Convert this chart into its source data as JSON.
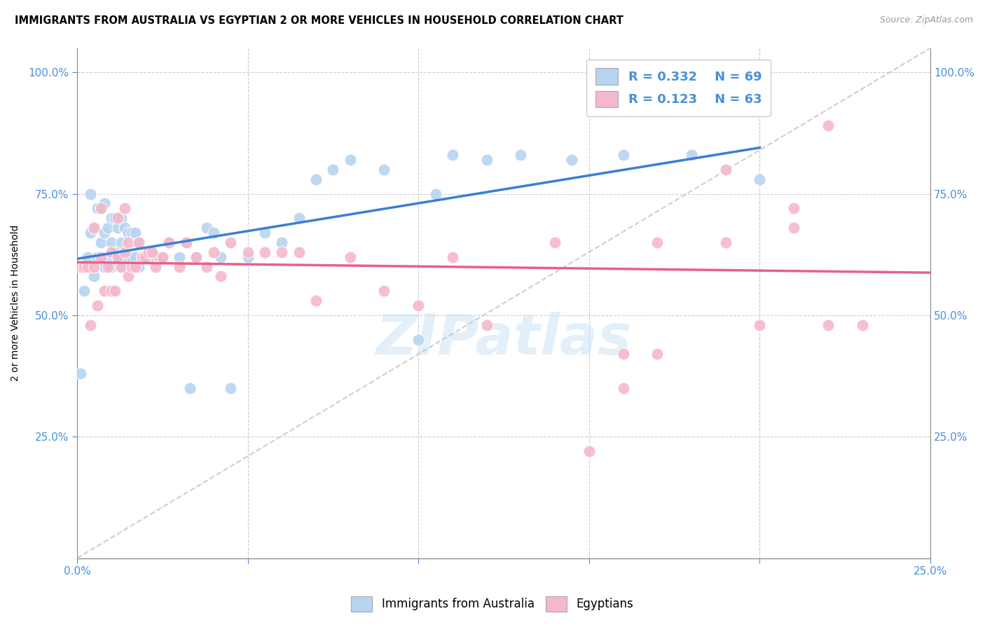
{
  "title": "IMMIGRANTS FROM AUSTRALIA VS EGYPTIAN 2 OR MORE VEHICLES IN HOUSEHOLD CORRELATION CHART",
  "source": "Source: ZipAtlas.com",
  "ylabel": "2 or more Vehicles in Household",
  "xlim": [
    0.0,
    0.25
  ],
  "ylim": [
    0.0,
    1.05
  ],
  "yticks": [
    0.25,
    0.5,
    0.75,
    1.0
  ],
  "ytick_labels": [
    "25.0%",
    "50.0%",
    "75.0%",
    "100.0%"
  ],
  "xticks": [
    0.0,
    0.05,
    0.1,
    0.15,
    0.2,
    0.25
  ],
  "legend_entries": [
    {
      "label": "Immigrants from Australia",
      "R": "0.332",
      "N": "69",
      "color": "#b8d4f0"
    },
    {
      "label": "Egyptians",
      "R": "0.123",
      "N": "63",
      "color": "#f5b8cb"
    }
  ],
  "australia_color": "#b8d4f0",
  "egypt_color": "#f5b8cb",
  "australia_line_color": "#3a7fd5",
  "egypt_line_color": "#e8608a",
  "diagonal_color": "#bbbbbb",
  "R_australia": 0.332,
  "N_australia": 69,
  "R_egypt": 0.123,
  "N_egypt": 63,
  "watermark": "ZIPatlas",
  "tick_label_color": "#4a90d9",
  "aus_x": [
    0.001,
    0.002,
    0.003,
    0.004,
    0.004,
    0.005,
    0.005,
    0.006,
    0.006,
    0.007,
    0.007,
    0.008,
    0.008,
    0.008,
    0.009,
    0.009,
    0.01,
    0.01,
    0.01,
    0.011,
    0.011,
    0.012,
    0.012,
    0.013,
    0.013,
    0.013,
    0.014,
    0.014,
    0.015,
    0.015,
    0.016,
    0.016,
    0.017,
    0.017,
    0.018,
    0.018,
    0.019,
    0.02,
    0.021,
    0.022,
    0.023,
    0.024,
    0.025,
    0.027,
    0.03,
    0.032,
    0.033,
    0.035,
    0.038,
    0.04,
    0.042,
    0.045,
    0.05,
    0.055,
    0.06,
    0.065,
    0.07,
    0.075,
    0.08,
    0.09,
    0.1,
    0.105,
    0.11,
    0.12,
    0.13,
    0.145,
    0.16,
    0.18,
    0.2
  ],
  "aus_y": [
    0.38,
    0.55,
    0.62,
    0.67,
    0.75,
    0.58,
    0.68,
    0.62,
    0.72,
    0.65,
    0.72,
    0.6,
    0.67,
    0.73,
    0.62,
    0.68,
    0.6,
    0.65,
    0.7,
    0.63,
    0.7,
    0.62,
    0.68,
    0.6,
    0.65,
    0.7,
    0.62,
    0.68,
    0.62,
    0.67,
    0.62,
    0.67,
    0.62,
    0.67,
    0.6,
    0.65,
    0.62,
    0.62,
    0.62,
    0.63,
    0.62,
    0.62,
    0.62,
    0.65,
    0.62,
    0.65,
    0.35,
    0.62,
    0.68,
    0.67,
    0.62,
    0.35,
    0.62,
    0.67,
    0.65,
    0.7,
    0.78,
    0.8,
    0.82,
    0.8,
    0.45,
    0.75,
    0.83,
    0.82,
    0.83,
    0.82,
    0.83,
    0.83,
    0.78
  ],
  "egy_x": [
    0.001,
    0.002,
    0.003,
    0.004,
    0.005,
    0.005,
    0.006,
    0.007,
    0.007,
    0.008,
    0.009,
    0.01,
    0.01,
    0.011,
    0.012,
    0.012,
    0.013,
    0.014,
    0.014,
    0.015,
    0.015,
    0.016,
    0.017,
    0.018,
    0.019,
    0.02,
    0.021,
    0.022,
    0.023,
    0.025,
    0.027,
    0.03,
    0.032,
    0.035,
    0.038,
    0.04,
    0.042,
    0.045,
    0.05,
    0.055,
    0.06,
    0.065,
    0.07,
    0.08,
    0.09,
    0.1,
    0.11,
    0.12,
    0.15,
    0.16,
    0.17,
    0.18,
    0.19,
    0.2,
    0.21,
    0.22,
    0.23,
    0.14,
    0.16,
    0.17,
    0.19,
    0.21,
    0.22
  ],
  "egy_y": [
    0.6,
    0.6,
    0.6,
    0.48,
    0.6,
    0.68,
    0.52,
    0.62,
    0.72,
    0.55,
    0.6,
    0.55,
    0.63,
    0.55,
    0.62,
    0.7,
    0.6,
    0.63,
    0.72,
    0.58,
    0.65,
    0.6,
    0.6,
    0.65,
    0.62,
    0.62,
    0.63,
    0.63,
    0.6,
    0.62,
    0.65,
    0.6,
    0.65,
    0.62,
    0.6,
    0.63,
    0.58,
    0.65,
    0.63,
    0.63,
    0.63,
    0.63,
    0.53,
    0.62,
    0.55,
    0.52,
    0.62,
    0.48,
    0.22,
    0.35,
    0.42,
    0.93,
    0.65,
    0.48,
    0.68,
    0.89,
    0.48,
    0.65,
    0.42,
    0.65,
    0.8,
    0.72,
    0.48
  ]
}
